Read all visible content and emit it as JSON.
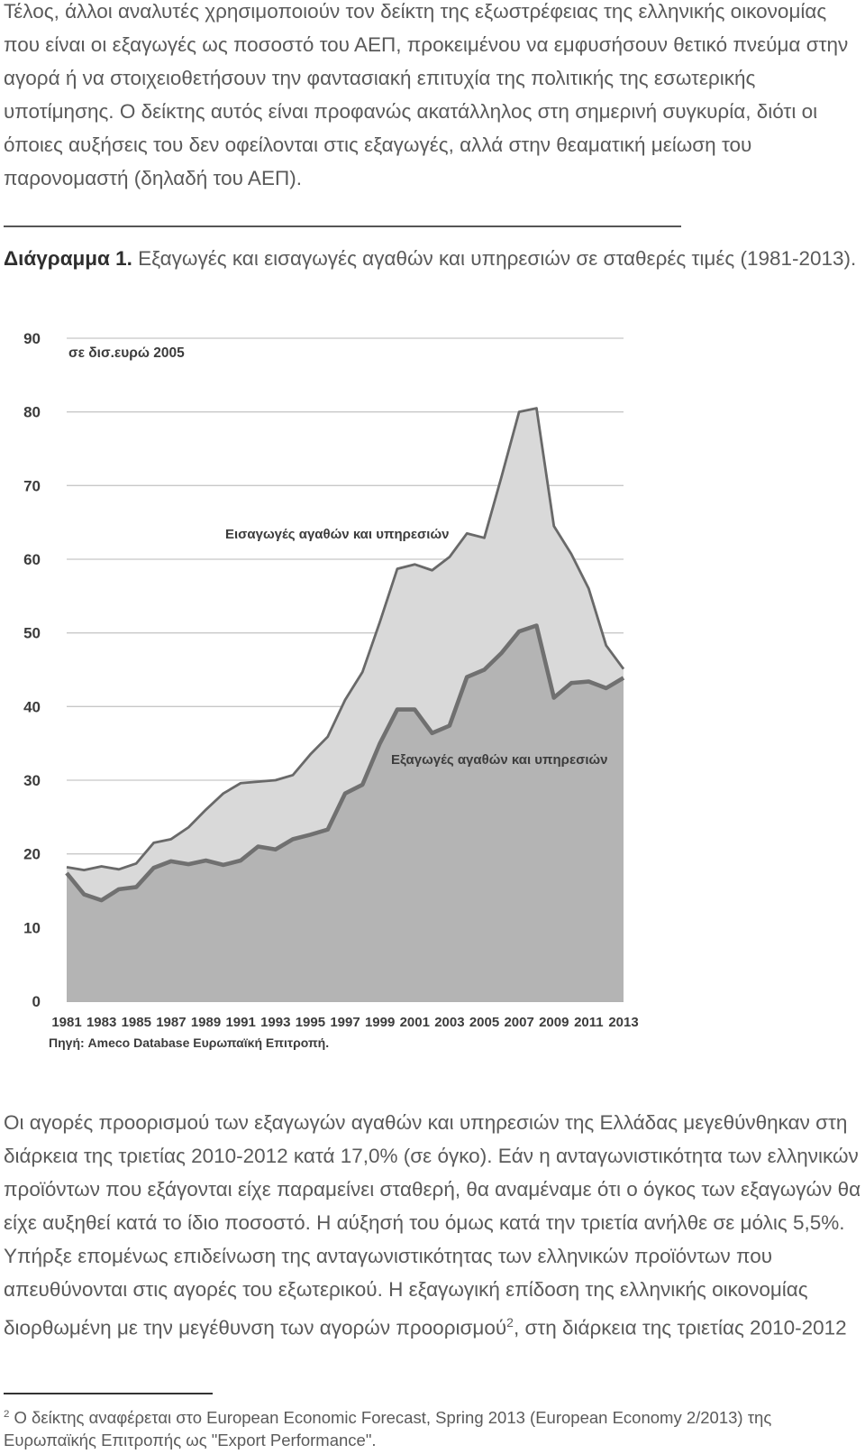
{
  "paragraph1": "Τέλος, άλλοι αναλυτές χρησιμοποιούν τον δείκτη της εξωστρέφειας της ελληνικής οικονομίας που είναι οι εξαγωγές ως ποσοστό του ΑΕΠ, προκειμένου να εμφυσήσουν θετικό πνεύμα στην αγορά ή να στοιχειοθετήσουν την φαντασιακή επιτυχία της πολιτικής της εσωτερικής υποτίμησης. Ο δείκτης αυτός είναι προφανώς ακατάλληλος στη σημερινή συγκυρία, διότι οι όποιες αυξήσεις του δεν οφείλονται στις εξαγωγές, αλλά στην θεαματική μείωση του παρονομαστή (δηλαδή του ΑΕΠ).",
  "caption": {
    "label": "Διάγραμμα 1.",
    "text": " Εξαγωγές και εισαγωγές αγαθών και υπηρεσιών σε σταθερές τιμές (1981-2013)."
  },
  "chart_data": {
    "type": "area",
    "unit_label": "σε δισ.ευρώ 2005",
    "source": "Πηγή: Ameco Database Ευρωπαϊκή Επιτροπή.",
    "ylim": [
      0,
      90
    ],
    "yticks": [
      0,
      10,
      20,
      30,
      40,
      50,
      60,
      70,
      80,
      90
    ],
    "xtick_labels": [
      "1981",
      "1983",
      "1985",
      "1987",
      "1989",
      "1991",
      "1993",
      "1995",
      "1997",
      "1999",
      "2001",
      "2003",
      "2005",
      "2007",
      "2009",
      "2011",
      "2013"
    ],
    "x": [
      1981,
      1982,
      1983,
      1984,
      1985,
      1986,
      1987,
      1988,
      1989,
      1990,
      1991,
      1992,
      1993,
      1994,
      1995,
      1996,
      1997,
      1998,
      1999,
      2000,
      2001,
      2002,
      2003,
      2004,
      2005,
      2006,
      2007,
      2008,
      2009,
      2010,
      2011,
      2012,
      2013
    ],
    "grid": true,
    "series": [
      {
        "name": "Εισαγωγές αγαθών και υπηρεσιών",
        "color": "#696969",
        "fill": "#d9d9d9",
        "values": [
          18.2,
          17.8,
          18.3,
          17.9,
          18.7,
          21.5,
          22.0,
          23.6,
          26.0,
          28.2,
          29.6,
          29.8,
          30.0,
          30.7,
          33.5,
          35.9,
          40.9,
          44.7,
          51.5,
          58.7,
          59.3,
          58.5,
          60.3,
          63.5,
          62.9,
          71.3,
          80.0,
          80.5,
          64.5,
          60.7,
          56.0,
          48.3,
          45.1
        ]
      },
      {
        "name": "Εξαγωγές αγαθών και υπηρεσιών",
        "color": "#707070",
        "fill": "#b4b4b4",
        "values": [
          17.4,
          14.5,
          13.7,
          15.2,
          15.5,
          18.1,
          19.0,
          18.6,
          19.1,
          18.5,
          19.1,
          21.0,
          20.6,
          22.0,
          22.6,
          23.3,
          28.2,
          29.4,
          35.0,
          39.6,
          39.6,
          36.4,
          37.4,
          44.0,
          45.0,
          47.3,
          50.2,
          51.0,
          41.2,
          43.2,
          43.4,
          42.5,
          43.9
        ]
      }
    ]
  },
  "paragraph2": {
    "text": "Οι αγορές προορισμού των εξαγωγών αγαθών και υπηρεσιών της Ελλάδας μεγεθύνθηκαν στη διάρκεια της τριετίας 2010-2012 κατά 17,0% (σε όγκο). Εάν η ανταγωνιστικότητα των ελληνικών προϊόντων που εξάγονται είχε παραμείνει σταθερή, θα αναμέναμε ότι ο όγκος των εξαγωγών θα είχε αυξηθεί κατά το ίδιο ποσοστό. Η αύξησή του όμως κατά την τριετία ανήλθε σε μόλις 5,5%. Υπήρξε επομένως επιδείνωση της ανταγωνιστικότητας των ελληνικών προϊόντων που απευθύνονται στις αγορές του εξωτερικού. Η εξαγωγική επίδοση της ελληνικής οικονομίας διορθωμένη με την μεγέθυνση των αγορών προορισμού",
    "sup": "2",
    "tail": ", στη διάρκεια της τριετίας 2010-2012"
  },
  "footnote": {
    "mark": "2",
    "text": " Ο δείκτης αναφέρεται στο European Economic Forecast, Spring 2013 (European Economy 2/2013) της Ευρωπαϊκής Επιτροπής ως \"Export Performance\"."
  }
}
